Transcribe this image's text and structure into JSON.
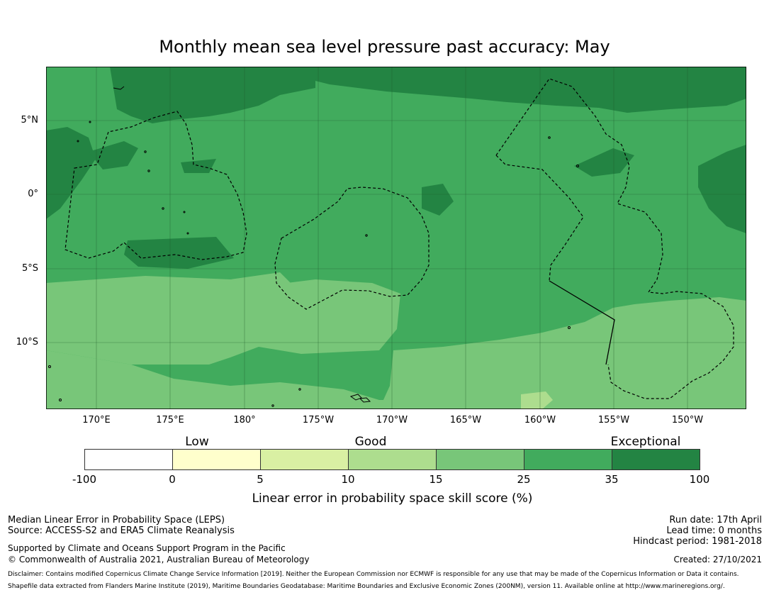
{
  "title": "Monthly mean sea level pressure past accuracy: May",
  "map": {
    "lat_labels": [
      "5°N",
      "0°",
      "5°S",
      "10°S"
    ],
    "lon_labels": [
      "170°E",
      "175°E",
      "180°",
      "175°W",
      "170°W",
      "165°W",
      "160°W",
      "155°W",
      "150°W"
    ],
    "colors": {
      "ocean_base": "#41ab5d",
      "exceptional": "#238443",
      "good_high": "#78c679",
      "good_low": "#addd8e",
      "boundary": "#000000"
    }
  },
  "colorbar": {
    "category_labels": {
      "low": "Low",
      "good": "Good",
      "exceptional": "Exceptional"
    },
    "ticks": [
      "-100",
      "0",
      "5",
      "10",
      "15",
      "25",
      "35",
      "100"
    ],
    "bins": [
      {
        "range": "-100 to 0",
        "color": "#ffffff"
      },
      {
        "range": "0 to 5",
        "color": "#ffffcc"
      },
      {
        "range": "5 to 10",
        "color": "#d9f0a3"
      },
      {
        "range": "10 to 15",
        "color": "#addd8e"
      },
      {
        "range": "15 to 25",
        "color": "#78c679"
      },
      {
        "range": "25 to 35",
        "color": "#41ab5d"
      },
      {
        "range": "35 to 100",
        "color": "#238443"
      }
    ],
    "label": "Linear error in probability space skill score (%)"
  },
  "info_left": {
    "line1": "Median Linear Error in Probability Space (LEPS)",
    "line2": "Source: ACCESS-S2 and ERA5 Climate Reanalysis",
    "line3": "Supported by Climate and Oceans Support Program in the Pacific",
    "line4": "© Commonwealth of Australia 2021, Australian Bureau of Meteorology"
  },
  "info_right": {
    "run_date": "Run date: 17th April",
    "lead_time": "Lead time: 0 months",
    "hindcast": "Hindcast period: 1981-2018",
    "created": "Created: 27/10/2021"
  },
  "disclaimer": {
    "line1": "Disclaimer: Contains modified Copernicus Climate Change Service Information [2019]. Neither the European Commission nor ECMWF is responsible for any use that may be made of the Copernicus Information or Data it contains.",
    "line2": "Shapefile data extracted from Flanders Marine Institute (2019), Maritime Boundaries Geodatabase: Maritime Boundaries and Exclusive Economic Zones (200NM), version 11. Available online at http://www.marineregions.org/."
  }
}
